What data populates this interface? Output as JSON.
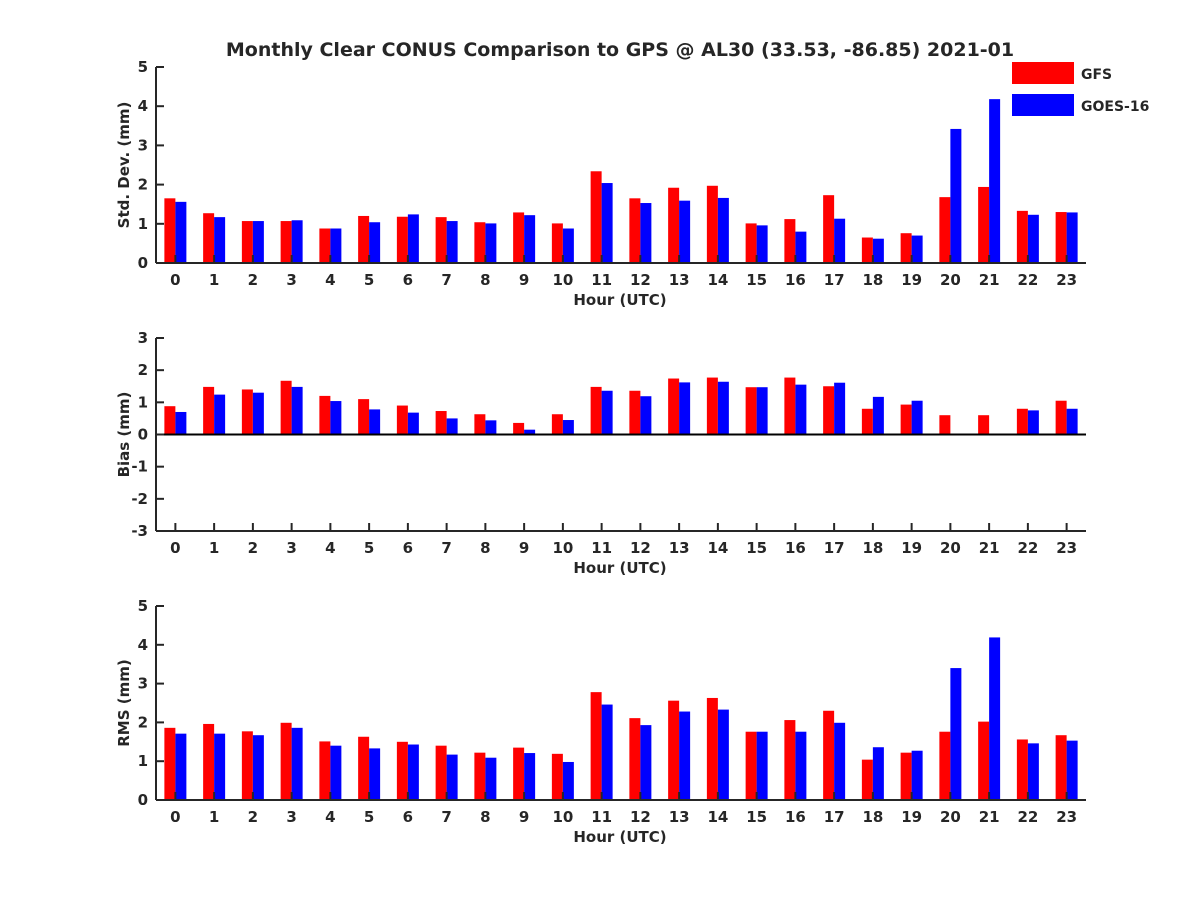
{
  "title": "Monthly Clear CONUS Comparison to GPS @ AL30 (33.53, -86.85) 2021-01",
  "legend": [
    {
      "label": "GFS",
      "color": "#ff0000"
    },
    {
      "label": "GOES-16",
      "color": "#0000ff"
    }
  ],
  "chart_data": [
    {
      "type": "bar",
      "xlabel": "Hour (UTC)",
      "ylabel": "Std. Dev. (mm)",
      "ylim": [
        0,
        5
      ],
      "yticks": [
        0,
        1,
        2,
        3,
        4,
        5
      ],
      "categories": [
        "0",
        "1",
        "2",
        "3",
        "4",
        "5",
        "6",
        "7",
        "8",
        "9",
        "10",
        "11",
        "12",
        "13",
        "14",
        "15",
        "16",
        "17",
        "18",
        "19",
        "20",
        "21",
        "22",
        "23"
      ],
      "series": [
        {
          "name": "GFS",
          "color": "#ff0000",
          "values": [
            1.65,
            1.27,
            1.07,
            1.07,
            0.88,
            1.2,
            1.18,
            1.17,
            1.04,
            1.29,
            1.01,
            2.34,
            1.65,
            1.92,
            1.97,
            1.01,
            1.12,
            1.73,
            0.65,
            0.76,
            1.68,
            1.94,
            1.33,
            1.3
          ]
        },
        {
          "name": "GOES-16",
          "color": "#0000ff",
          "values": [
            1.56,
            1.17,
            1.07,
            1.09,
            0.88,
            1.04,
            1.24,
            1.07,
            1.01,
            1.22,
            0.88,
            2.04,
            1.53,
            1.59,
            1.66,
            0.96,
            0.8,
            1.13,
            0.62,
            0.7,
            3.42,
            4.18,
            1.23,
            1.29
          ]
        }
      ]
    },
    {
      "type": "bar",
      "xlabel": "Hour (UTC)",
      "ylabel": "Bias (mm)",
      "ylim": [
        -3,
        3
      ],
      "yticks": [
        -3,
        -2,
        -1,
        0,
        1,
        2,
        3
      ],
      "categories": [
        "0",
        "1",
        "2",
        "3",
        "4",
        "5",
        "6",
        "7",
        "8",
        "9",
        "10",
        "11",
        "12",
        "13",
        "14",
        "15",
        "16",
        "17",
        "18",
        "19",
        "20",
        "21",
        "22",
        "23"
      ],
      "series": [
        {
          "name": "GFS",
          "color": "#ff0000",
          "values": [
            0.88,
            1.48,
            1.4,
            1.67,
            1.2,
            1.1,
            0.9,
            0.73,
            0.63,
            0.36,
            0.63,
            1.48,
            1.36,
            1.74,
            1.77,
            1.47,
            1.77,
            1.5,
            0.8,
            0.93,
            0.6,
            0.6,
            0.8,
            1.05
          ]
        },
        {
          "name": "GOES-16",
          "color": "#0000ff",
          "values": [
            0.7,
            1.24,
            1.3,
            1.48,
            1.04,
            0.78,
            0.68,
            0.5,
            0.44,
            0.15,
            0.45,
            1.36,
            1.19,
            1.62,
            1.64,
            1.47,
            1.55,
            1.61,
            1.17,
            1.05,
            0.0,
            0.0,
            0.75,
            0.8
          ]
        }
      ]
    },
    {
      "type": "bar",
      "xlabel": "Hour (UTC)",
      "ylabel": "RMS (mm)",
      "ylim": [
        0,
        5
      ],
      "yticks": [
        0,
        1,
        2,
        3,
        4,
        5
      ],
      "categories": [
        "0",
        "1",
        "2",
        "3",
        "4",
        "5",
        "6",
        "7",
        "8",
        "9",
        "10",
        "11",
        "12",
        "13",
        "14",
        "15",
        "16",
        "17",
        "18",
        "19",
        "20",
        "21",
        "22",
        "23"
      ],
      "series": [
        {
          "name": "GFS",
          "color": "#ff0000",
          "values": [
            1.86,
            1.96,
            1.77,
            1.99,
            1.51,
            1.63,
            1.5,
            1.4,
            1.22,
            1.35,
            1.19,
            2.78,
            2.11,
            2.56,
            2.63,
            1.76,
            2.06,
            2.3,
            1.04,
            1.22,
            1.76,
            2.02,
            1.56,
            1.67
          ]
        },
        {
          "name": "GOES-16",
          "color": "#0000ff",
          "values": [
            1.71,
            1.71,
            1.67,
            1.86,
            1.4,
            1.33,
            1.43,
            1.17,
            1.09,
            1.21,
            0.98,
            2.46,
            1.93,
            2.28,
            2.33,
            1.76,
            1.76,
            1.99,
            1.36,
            1.27,
            3.4,
            4.19,
            1.46,
            1.53
          ]
        }
      ]
    }
  ]
}
